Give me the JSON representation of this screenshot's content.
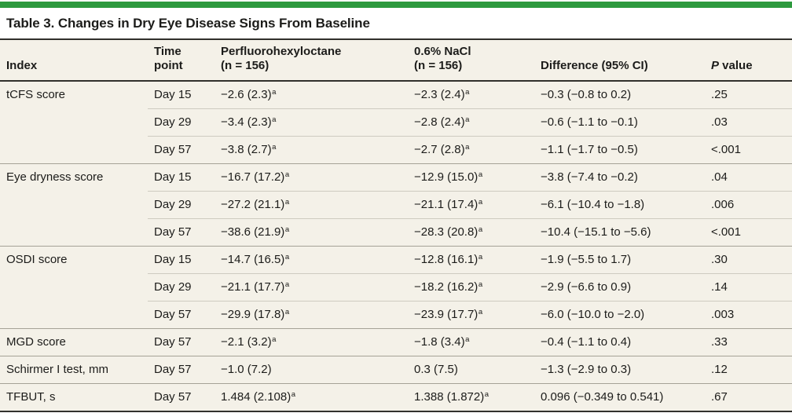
{
  "accent_color": "#2d9a3e",
  "table_background_color": "#f4f1e8",
  "title": "Table 3. Changes in Dry Eye Disease Signs From Baseline",
  "columns": [
    {
      "key": "index",
      "lines": [
        "Index"
      ]
    },
    {
      "key": "time",
      "lines": [
        "Time",
        "point"
      ]
    },
    {
      "key": "drug",
      "lines": [
        "Perfluorohexyloctane",
        "(n = 156)"
      ]
    },
    {
      "key": "nacl",
      "lines": [
        "0.6% NaCl",
        "(n = 156)"
      ]
    },
    {
      "key": "diff",
      "lines": [
        "Difference (95% CI)"
      ]
    },
    {
      "key": "p",
      "em": "P",
      "rest": " value"
    }
  ],
  "footnote_marker": "a",
  "rows": [
    {
      "group_start": true,
      "index": "tCFS score",
      "time": "Day 15",
      "drug": {
        "v": "−2.6 (2.3)",
        "sup": "a"
      },
      "nacl": {
        "v": "−2.3 (2.4)",
        "sup": "a"
      },
      "diff": "−0.3 (−0.8 to 0.2)",
      "p": ".25"
    },
    {
      "group_start": false,
      "index": "",
      "time": "Day 29",
      "drug": {
        "v": "−3.4 (2.3)",
        "sup": "a"
      },
      "nacl": {
        "v": "−2.8 (2.4)",
        "sup": "a"
      },
      "diff": "−0.6 (−1.1 to −0.1)",
      "p": ".03"
    },
    {
      "group_start": false,
      "index": "",
      "time": "Day 57",
      "drug": {
        "v": "−3.8 (2.7)",
        "sup": "a"
      },
      "nacl": {
        "v": "−2.7 (2.8)",
        "sup": "a"
      },
      "diff": "−1.1 (−1.7 to −0.5)",
      "p": "<.001"
    },
    {
      "group_start": true,
      "index": "Eye dryness score",
      "time": "Day 15",
      "drug": {
        "v": "−16.7 (17.2)",
        "sup": "a"
      },
      "nacl": {
        "v": "−12.9 (15.0)",
        "sup": "a"
      },
      "diff": "−3.8 (−7.4 to −0.2)",
      "p": ".04"
    },
    {
      "group_start": false,
      "index": "",
      "time": "Day 29",
      "drug": {
        "v": "−27.2 (21.1)",
        "sup": "a"
      },
      "nacl": {
        "v": "−21.1 (17.4)",
        "sup": "a"
      },
      "diff": "−6.1 (−10.4 to −1.8)",
      "p": ".006"
    },
    {
      "group_start": false,
      "index": "",
      "time": "Day 57",
      "drug": {
        "v": "−38.6 (21.9)",
        "sup": "a"
      },
      "nacl": {
        "v": "−28.3 (20.8)",
        "sup": "a"
      },
      "diff": "−10.4 (−15.1 to −5.6)",
      "p": "<.001"
    },
    {
      "group_start": true,
      "index": "OSDI score",
      "time": "Day 15",
      "drug": {
        "v": "−14.7 (16.5)",
        "sup": "a"
      },
      "nacl": {
        "v": "−12.8 (16.1)",
        "sup": "a"
      },
      "diff": "−1.9 (−5.5 to 1.7)",
      "p": ".30"
    },
    {
      "group_start": false,
      "index": "",
      "time": "Day 29",
      "drug": {
        "v": "−21.1 (17.7)",
        "sup": "a"
      },
      "nacl": {
        "v": "−18.2 (16.2)",
        "sup": "a"
      },
      "diff": "−2.9 (−6.6 to 0.9)",
      "p": ".14"
    },
    {
      "group_start": false,
      "index": "",
      "time": "Day 57",
      "drug": {
        "v": "−29.9 (17.8)",
        "sup": "a"
      },
      "nacl": {
        "v": "−23.9 (17.7)",
        "sup": "a"
      },
      "diff": "−6.0 (−10.0 to −2.0)",
      "p": ".003"
    },
    {
      "group_start": true,
      "index": "MGD score",
      "time": "Day 57",
      "drug": {
        "v": "−2.1 (3.2)",
        "sup": "a"
      },
      "nacl": {
        "v": "−1.8 (3.4)",
        "sup": "a"
      },
      "diff": "−0.4 (−1.1 to 0.4)",
      "p": ".33"
    },
    {
      "group_start": true,
      "index": "Schirmer I test, mm",
      "time": "Day 57",
      "drug": {
        "v": "−1.0 (7.2)"
      },
      "nacl": {
        "v": "0.3 (7.5)"
      },
      "diff": "−1.3 (−2.9 to 0.3)",
      "p": ".12"
    },
    {
      "group_start": true,
      "index": "TFBUT, s",
      "time": "Day 57",
      "drug": {
        "v": "1.484 (2.108)",
        "sup": "a"
      },
      "nacl": {
        "v": "1.388 (1.872)",
        "sup": "a"
      },
      "diff": "0.096 (−0.349 to 0.541)",
      "p": ".67"
    }
  ]
}
